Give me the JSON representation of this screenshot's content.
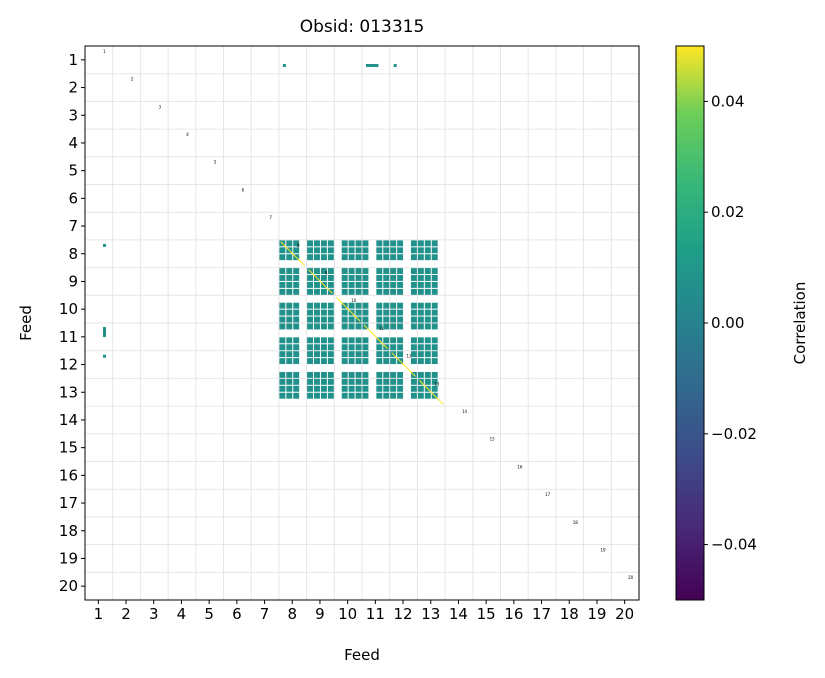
{
  "chart_data": {
    "type": "heatmap",
    "title": "Obsid: 013315",
    "xlabel": "Feed",
    "ylabel": "Feed",
    "x_ticks": [
      "1",
      "2",
      "3",
      "4",
      "5",
      "6",
      "7",
      "8",
      "9",
      "10",
      "11",
      "12",
      "13",
      "14",
      "15",
      "16",
      "17",
      "18",
      "19",
      "20"
    ],
    "y_ticks": [
      "1",
      "2",
      "3",
      "4",
      "5",
      "6",
      "7",
      "8",
      "9",
      "10",
      "11",
      "12",
      "13",
      "14",
      "15",
      "16",
      "17",
      "18",
      "19",
      "20"
    ],
    "grid": true,
    "colorbar": {
      "label": "Correlation",
      "colormap": "viridis",
      "range": [
        -0.05,
        0.05
      ],
      "ticks": [
        0.04,
        0.02,
        0.0,
        -0.02,
        -0.04
      ],
      "tick_labels": [
        "0.04",
        "0.02",
        "0.00",
        "−0.02",
        "−0.04"
      ]
    },
    "correlated_feed_block": [
      8,
      9,
      10,
      11,
      12,
      13
    ],
    "block_value": 0.0,
    "row1_entries": [
      {
        "feed": 8,
        "value": 0.0
      },
      {
        "feed": 11,
        "value": 0.0
      },
      {
        "feed": 12,
        "value": 0.0
      }
    ],
    "diagonal_labels": [
      "1",
      "2",
      "3",
      "4",
      "5",
      "6",
      "7",
      "8",
      "9",
      "10",
      "11",
      "12",
      "13",
      "14",
      "15",
      "16",
      "17",
      "18",
      "19",
      "20"
    ]
  },
  "colors": {
    "mid": "#21918c",
    "grid": "#e6e6e6"
  }
}
